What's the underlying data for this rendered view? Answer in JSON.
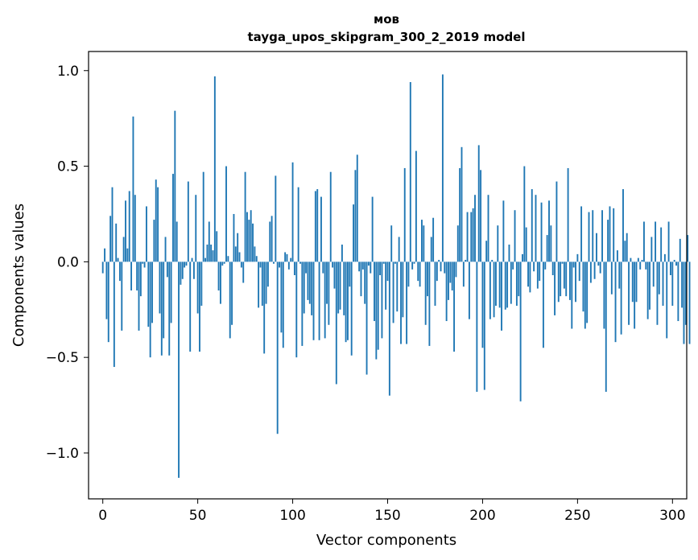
{
  "chart_data": {
    "type": "bar",
    "title": "мов",
    "subtitle": "tayga_upos_skipgram_300_2_2019 model",
    "xlabel": "Vector components",
    "ylabel": "Components values",
    "xlim": [
      -7.5,
      307.5
    ],
    "ylim": [
      -1.24,
      1.1
    ],
    "xticks": [
      0,
      50,
      100,
      150,
      200,
      250,
      300
    ],
    "xtick_labels": [
      "0",
      "50",
      "100",
      "150",
      "200",
      "250",
      "300"
    ],
    "yticks": [
      -1.0,
      -0.5,
      0.0,
      0.5,
      1.0
    ],
    "ytick_labels": [
      "−1.0",
      "−0.5",
      "0.0",
      "0.5",
      "1.0"
    ],
    "bar_color": "#1f77b4",
    "values": [
      -0.06,
      0.07,
      -0.3,
      -0.42,
      0.24,
      0.39,
      -0.55,
      0.2,
      0.02,
      -0.1,
      -0.36,
      0.13,
      0.32,
      0.07,
      0.37,
      -0.15,
      0.76,
      0.35,
      -0.15,
      -0.36,
      -0.18,
      -0.01,
      -0.03,
      0.29,
      -0.34,
      -0.5,
      -0.32,
      0.22,
      0.43,
      0.39,
      -0.27,
      -0.49,
      -0.4,
      0.13,
      -0.08,
      -0.49,
      -0.32,
      0.46,
      0.79,
      0.21,
      -1.13,
      -0.12,
      -0.09,
      -0.03,
      -0.02,
      0.42,
      -0.47,
      0.02,
      -0.09,
      0.35,
      -0.27,
      -0.47,
      -0.23,
      0.47,
      0.02,
      0.09,
      0.21,
      0.09,
      0.06,
      0.97,
      0.16,
      -0.15,
      -0.22,
      -0.02,
      -0.01,
      0.5,
      0.03,
      -0.4,
      -0.33,
      0.25,
      0.08,
      0.15,
      0.05,
      -0.03,
      -0.11,
      0.47,
      0.26,
      0.22,
      0.27,
      0.2,
      0.08,
      0.03,
      -0.24,
      -0.03,
      -0.23,
      -0.48,
      -0.22,
      -0.13,
      0.21,
      0.24,
      -0.01,
      0.45,
      -0.9,
      -0.03,
      -0.37,
      -0.45,
      0.05,
      0.04,
      -0.04,
      0.02,
      0.52,
      -0.07,
      -0.5,
      0.39,
      -0.01,
      -0.44,
      -0.27,
      -0.06,
      -0.2,
      -0.22,
      -0.28,
      -0.41,
      0.37,
      0.38,
      -0.41,
      0.34,
      -0.06,
      -0.4,
      -0.22,
      -0.33,
      0.47,
      -0.03,
      -0.14,
      -0.64,
      -0.27,
      -0.25,
      0.09,
      -0.28,
      -0.42,
      -0.41,
      -0.13,
      -0.49,
      0.3,
      0.48,
      0.56,
      -0.05,
      -0.18,
      -0.04,
      -0.22,
      -0.59,
      -0.02,
      -0.06,
      0.34,
      -0.31,
      -0.51,
      -0.46,
      -0.07,
      -0.4,
      -0.01,
      -0.25,
      -0.1,
      -0.7,
      0.19,
      -0.32,
      -0.01,
      -0.26,
      0.13,
      -0.43,
      -0.29,
      0.49,
      -0.43,
      -0.13,
      0.94,
      -0.04,
      -0.01,
      0.58,
      -0.1,
      -0.13,
      0.22,
      0.19,
      -0.33,
      -0.18,
      -0.44,
      0.13,
      0.23,
      -0.23,
      -0.1,
      0.01,
      -0.05,
      0.98,
      -0.06,
      -0.31,
      -0.2,
      -0.11,
      -0.15,
      -0.47,
      -0.08,
      0.19,
      0.49,
      0.6,
      -0.13,
      0.01,
      0.26,
      -0.3,
      0.26,
      0.28,
      0.35,
      -0.68,
      0.61,
      0.48,
      -0.45,
      -0.67,
      0.11,
      0.35,
      -0.3,
      0.01,
      -0.29,
      -0.23,
      0.19,
      -0.24,
      -0.36,
      0.32,
      -0.25,
      -0.24,
      0.09,
      -0.22,
      -0.04,
      0.27,
      -0.23,
      -0.18,
      -0.73,
      0.04,
      0.5,
      0.18,
      -0.13,
      -0.16,
      0.38,
      -0.05,
      0.35,
      -0.14,
      -0.1,
      0.31,
      -0.45,
      -0.04,
      0.14,
      0.32,
      0.19,
      -0.07,
      -0.28,
      0.42,
      -0.21,
      -0.18,
      -0.01,
      -0.14,
      -0.18,
      0.49,
      -0.2,
      -0.35,
      -0.03,
      -0.21,
      0.04,
      -0.1,
      0.29,
      -0.26,
      -0.35,
      -0.32,
      0.26,
      -0.11,
      0.27,
      -0.09,
      0.15,
      -0.02,
      -0.06,
      0.27,
      -0.35,
      -0.68,
      0.22,
      0.29,
      -0.17,
      0.28,
      -0.42,
      0.06,
      -0.14,
      -0.38,
      0.38,
      0.11,
      0.15,
      -0.33,
      0.02,
      -0.21,
      -0.35,
      -0.21,
      0.02,
      -0.04,
      0.01,
      0.21,
      -0.04,
      -0.3,
      -0.25,
      0.13,
      -0.13,
      0.21,
      -0.33,
      -0.17,
      0.18,
      -0.23,
      0.04,
      -0.4,
      0.21,
      -0.07,
      -0.23,
      0.01,
      -0.02,
      -0.31,
      0.12,
      -0.24,
      -0.43,
      -0.33,
      0.14,
      -0.43
    ]
  }
}
